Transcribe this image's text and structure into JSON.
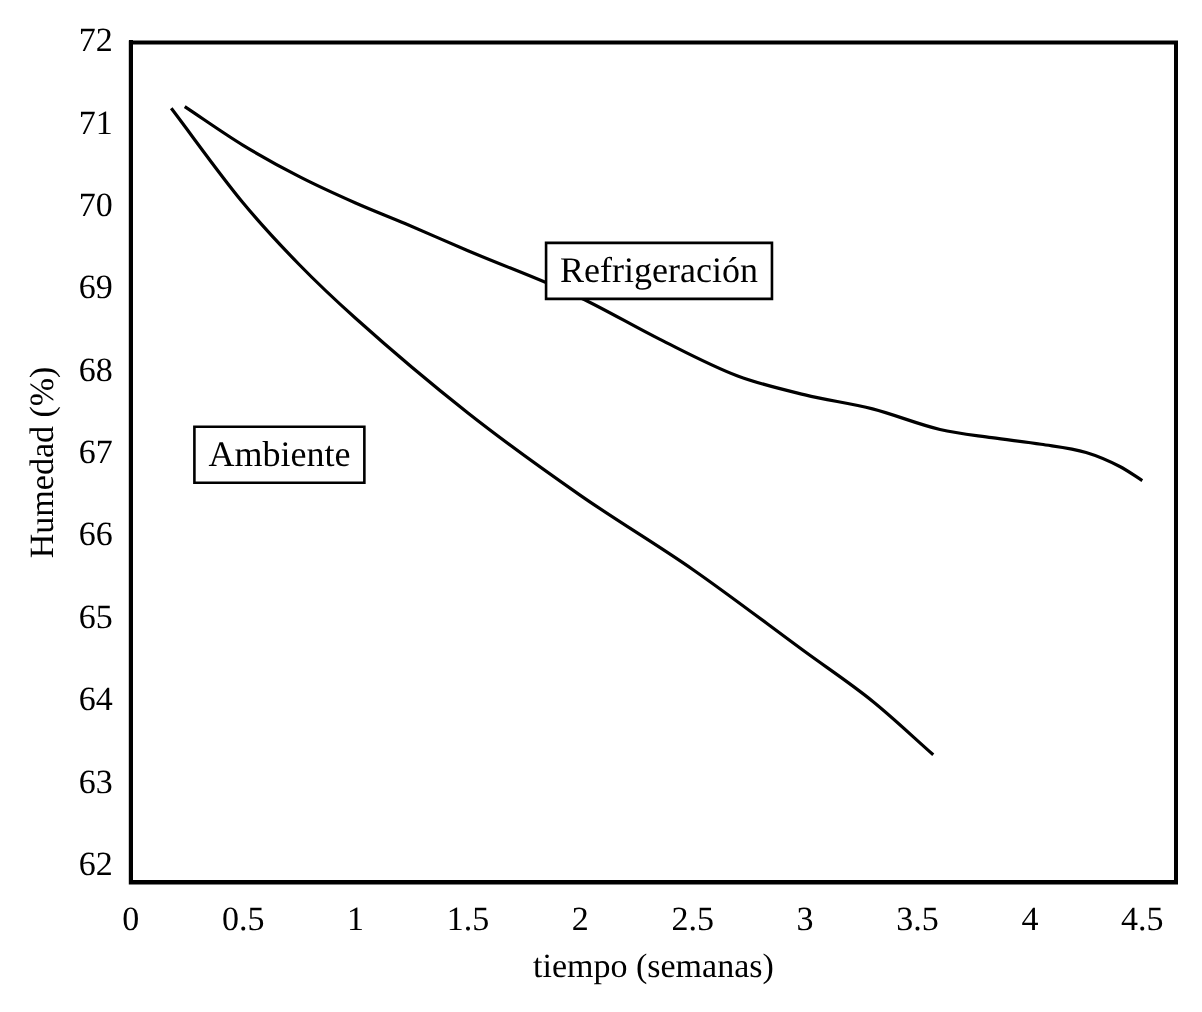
{
  "chart_data": {
    "type": "line",
    "xlabel": "tiempo (semanas)",
    "ylabel": "Humedad (%)",
    "xlim": [
      0,
      4.65
    ],
    "xticks": [
      0,
      0.5,
      1,
      1.5,
      2,
      2.5,
      3,
      3.5,
      4,
      4.5
    ],
    "ylim": [
      61.8,
      72
    ],
    "yticks": [
      62,
      63,
      64,
      65,
      66,
      67,
      68,
      69,
      70,
      71,
      72
    ],
    "grid": false,
    "legend": false,
    "marker": "none",
    "line_style": "solid",
    "series": [
      {
        "name": "Refrigeración",
        "color": "#000000",
        "x": [
          0.24,
          0.5,
          0.75,
          1,
          1.22,
          1.5,
          2,
          2.35,
          2.7,
          3,
          3.3,
          3.6,
          3.83,
          4.05,
          4.25,
          4.4,
          4.5
        ],
        "values": [
          71.22,
          70.75,
          70.37,
          70.05,
          69.8,
          69.47,
          68.9,
          68.4,
          67.95,
          67.72,
          67.55,
          67.3,
          67.2,
          67.12,
          67.02,
          66.85,
          66.68
        ]
      },
      {
        "name": "Ambiente",
        "color": "#000000",
        "x": [
          0.18,
          0.5,
          0.75,
          1,
          1.5,
          2,
          2.5,
          3,
          3.3,
          3.57
        ],
        "values": [
          71.2,
          70.05,
          69.3,
          68.65,
          67.5,
          66.5,
          65.6,
          64.6,
          64.0,
          63.35
        ]
      }
    ]
  }
}
